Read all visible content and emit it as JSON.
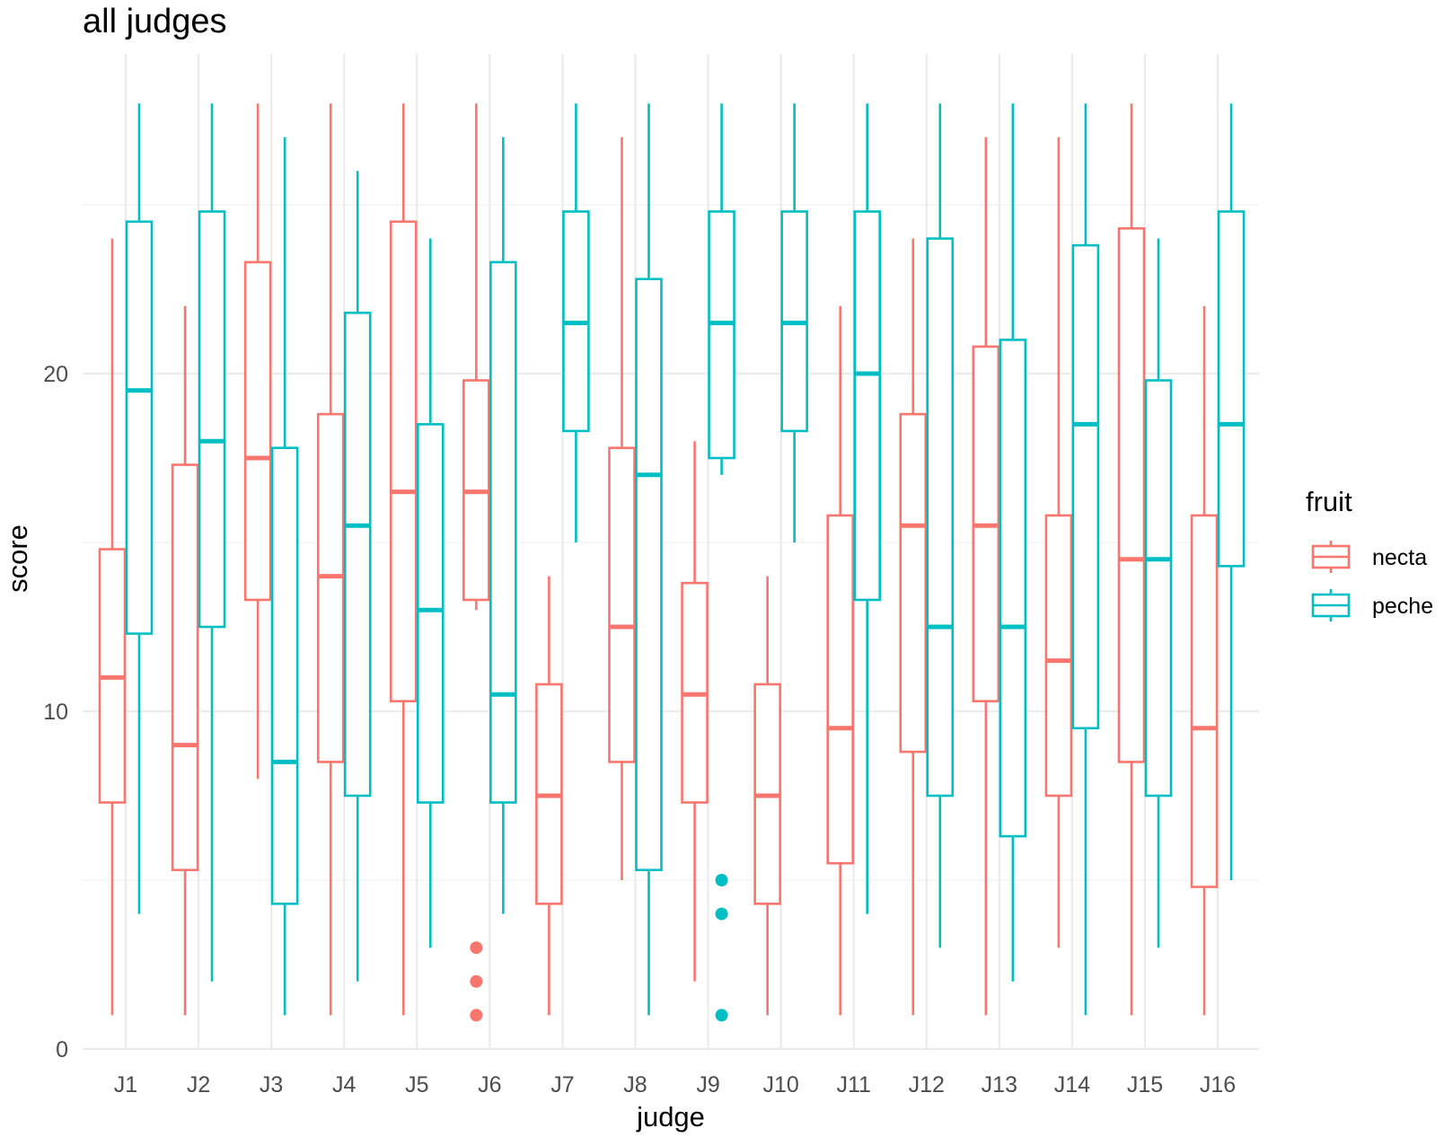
{
  "chart_data": {
    "type": "boxplot",
    "title": "all judges",
    "xlabel": "judge",
    "ylabel": "score",
    "ylim": [
      0,
      28
    ],
    "yticks": [
      0,
      10,
      20
    ],
    "grid": true,
    "legend": {
      "title": "fruit",
      "position": "right"
    },
    "categories": [
      "J1",
      "J2",
      "J3",
      "J4",
      "J5",
      "J6",
      "J7",
      "J8",
      "J9",
      "J10",
      "J11",
      "J12",
      "J13",
      "J14",
      "J15",
      "J16"
    ],
    "series": [
      {
        "name": "necta",
        "color": "#F8766D",
        "boxes": [
          {
            "lower": 1,
            "q1": 7.3,
            "median": 11,
            "q3": 14.8,
            "upper": 24,
            "outliers": []
          },
          {
            "lower": 1,
            "q1": 5.3,
            "median": 9,
            "q3": 17.3,
            "upper": 22,
            "outliers": []
          },
          {
            "lower": 8,
            "q1": 13.3,
            "median": 17.5,
            "q3": 23.3,
            "upper": 28,
            "outliers": []
          },
          {
            "lower": 1,
            "q1": 8.5,
            "median": 14,
            "q3": 18.8,
            "upper": 28,
            "outliers": []
          },
          {
            "lower": 1,
            "q1": 10.3,
            "median": 16.5,
            "q3": 24.5,
            "upper": 28,
            "outliers": []
          },
          {
            "lower": 13,
            "q1": 13.3,
            "median": 16.5,
            "q3": 19.8,
            "upper": 28,
            "outliers": [
              1,
              2,
              3
            ]
          },
          {
            "lower": 1,
            "q1": 4.3,
            "median": 7.5,
            "q3": 10.8,
            "upper": 14,
            "outliers": []
          },
          {
            "lower": 5,
            "q1": 8.5,
            "median": 12.5,
            "q3": 17.8,
            "upper": 27,
            "outliers": []
          },
          {
            "lower": 2,
            "q1": 7.3,
            "median": 10.5,
            "q3": 13.8,
            "upper": 18,
            "outliers": []
          },
          {
            "lower": 1,
            "q1": 4.3,
            "median": 7.5,
            "q3": 10.8,
            "upper": 14,
            "outliers": []
          },
          {
            "lower": 1,
            "q1": 5.5,
            "median": 9.5,
            "q3": 15.8,
            "upper": 22,
            "outliers": []
          },
          {
            "lower": 1,
            "q1": 8.8,
            "median": 15.5,
            "q3": 18.8,
            "upper": 24,
            "outliers": []
          },
          {
            "lower": 1,
            "q1": 10.3,
            "median": 15.5,
            "q3": 20.8,
            "upper": 27,
            "outliers": []
          },
          {
            "lower": 3,
            "q1": 7.5,
            "median": 11.5,
            "q3": 15.8,
            "upper": 27,
            "outliers": []
          },
          {
            "lower": 1,
            "q1": 8.5,
            "median": 14.5,
            "q3": 24.3,
            "upper": 28,
            "outliers": []
          },
          {
            "lower": 1,
            "q1": 4.8,
            "median": 9.5,
            "q3": 15.8,
            "upper": 22,
            "outliers": []
          }
        ]
      },
      {
        "name": "peche",
        "color": "#00BFC4",
        "boxes": [
          {
            "lower": 4,
            "q1": 12.3,
            "median": 19.5,
            "q3": 24.5,
            "upper": 28,
            "outliers": []
          },
          {
            "lower": 2,
            "q1": 12.5,
            "median": 18,
            "q3": 24.8,
            "upper": 28,
            "outliers": []
          },
          {
            "lower": 1,
            "q1": 4.3,
            "median": 8.5,
            "q3": 17.8,
            "upper": 27,
            "outliers": []
          },
          {
            "lower": 2,
            "q1": 7.5,
            "median": 15.5,
            "q3": 21.8,
            "upper": 26,
            "outliers": []
          },
          {
            "lower": 3,
            "q1": 7.3,
            "median": 13,
            "q3": 18.5,
            "upper": 24,
            "outliers": []
          },
          {
            "lower": 4,
            "q1": 7.3,
            "median": 10.5,
            "q3": 23.3,
            "upper": 27,
            "outliers": []
          },
          {
            "lower": 15,
            "q1": 18.3,
            "median": 21.5,
            "q3": 24.8,
            "upper": 28,
            "outliers": []
          },
          {
            "lower": 1,
            "q1": 5.3,
            "median": 17,
            "q3": 22.8,
            "upper": 28,
            "outliers": []
          },
          {
            "lower": 17,
            "q1": 17.5,
            "median": 21.5,
            "q3": 24.8,
            "upper": 28,
            "outliers": [
              1,
              4,
              5
            ]
          },
          {
            "lower": 15,
            "q1": 18.3,
            "median": 21.5,
            "q3": 24.8,
            "upper": 28,
            "outliers": []
          },
          {
            "lower": 4,
            "q1": 13.3,
            "median": 20,
            "q3": 24.8,
            "upper": 28,
            "outliers": []
          },
          {
            "lower": 3,
            "q1": 7.5,
            "median": 12.5,
            "q3": 24,
            "upper": 28,
            "outliers": []
          },
          {
            "lower": 2,
            "q1": 6.3,
            "median": 12.5,
            "q3": 21,
            "upper": 28,
            "outliers": []
          },
          {
            "lower": 1,
            "q1": 9.5,
            "median": 18.5,
            "q3": 23.8,
            "upper": 28,
            "outliers": []
          },
          {
            "lower": 3,
            "q1": 7.5,
            "median": 14.5,
            "q3": 19.8,
            "upper": 24,
            "outliers": []
          },
          {
            "lower": 5,
            "q1": 14.3,
            "median": 18.5,
            "q3": 24.8,
            "upper": 28,
            "outliers": []
          }
        ]
      }
    ]
  }
}
